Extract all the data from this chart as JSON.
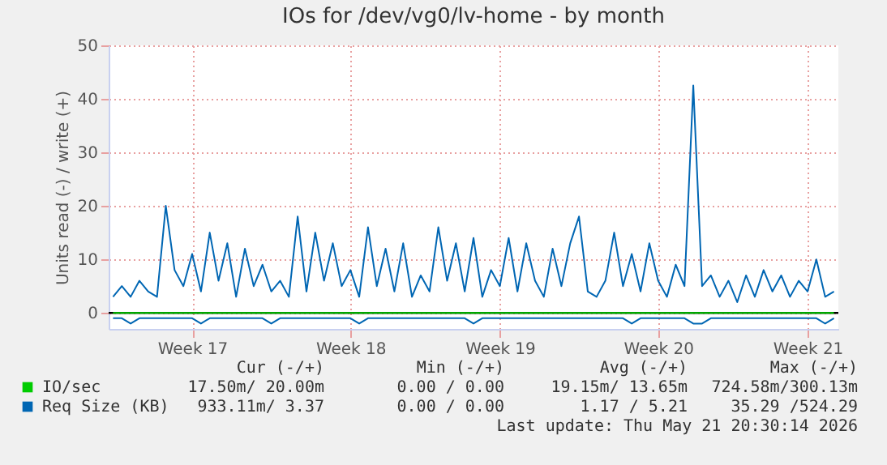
{
  "chart_data": {
    "type": "line",
    "title": "IOs for /dev/vg0/lv-home - by month",
    "ylabel": "Units read (-) / write (+)",
    "categories": [
      null,
      null,
      null,
      null,
      null,
      null,
      null,
      null,
      null,
      "Week 17",
      null,
      null,
      null,
      null,
      null,
      null,
      null,
      null,
      null,
      null,
      null,
      null,
      null,
      null,
      null,
      null,
      null,
      "Week 18",
      null,
      null,
      null,
      null,
      null,
      null,
      null,
      null,
      null,
      null,
      null,
      null,
      null,
      null,
      null,
      null,
      "Week 19",
      null,
      null,
      null,
      null,
      null,
      null,
      null,
      null,
      null,
      null,
      null,
      null,
      null,
      null,
      null,
      null,
      null,
      "Week 20",
      null,
      null,
      null,
      null,
      null,
      null,
      null,
      null,
      null,
      null,
      null,
      null,
      null,
      null,
      null,
      null,
      "Week 21",
      null,
      null,
      null
    ],
    "ylim": [
      -3,
      50
    ],
    "yticks": [
      0,
      10,
      20,
      30,
      40,
      50
    ],
    "grid": true,
    "legend": "bottom left",
    "line_style": "solid",
    "marker": "none",
    "ref_lines": [
      {
        "axis": "y",
        "value": 0,
        "label": null,
        "color": "#000000"
      }
    ],
    "series": [
      {
        "name": "IO/sec",
        "color": "#00cc00",
        "values": [
          0,
          0,
          0,
          0,
          0,
          0,
          0,
          0,
          0,
          0,
          0,
          0,
          0,
          0,
          0,
          0,
          0,
          0,
          0,
          0,
          0,
          0,
          0,
          0,
          0,
          0,
          0,
          0,
          0,
          0,
          0,
          0,
          0,
          0,
          0,
          0,
          0,
          0,
          0,
          0,
          0,
          0,
          0,
          0,
          0,
          0,
          0,
          0,
          0,
          0,
          0,
          0,
          0,
          0,
          0,
          0,
          0,
          0,
          0,
          0,
          0,
          0,
          0,
          0,
          0,
          0,
          0,
          0,
          0,
          0,
          0,
          0,
          0,
          0,
          0,
          0,
          0,
          0,
          0,
          0,
          0,
          0,
          0
        ]
      },
      {
        "name": "Req Size (KB)",
        "color": "#0066b3",
        "values": [
          3,
          5,
          3,
          6,
          4,
          3,
          20,
          8,
          5,
          11,
          4,
          15,
          6,
          13,
          3,
          12,
          5,
          9,
          4,
          6,
          3,
          18,
          4,
          15,
          6,
          13,
          5,
          8,
          3,
          16,
          5,
          12,
          4,
          13,
          3,
          7,
          4,
          16,
          6,
          13,
          4,
          14,
          3,
          8,
          5,
          14,
          4,
          13,
          6,
          3,
          12,
          5,
          13,
          18,
          4,
          3,
          6,
          15,
          5,
          11,
          4,
          13,
          6,
          3,
          9,
          5,
          42.5,
          5,
          7,
          3,
          6,
          2,
          7,
          3,
          8,
          4,
          7,
          3,
          6,
          4,
          10,
          3,
          4
        ]
      },
      {
        "color": "#0066b3",
        "values": [
          -1,
          -1,
          -2,
          -1,
          -1,
          -1,
          -1,
          -1,
          -1,
          -1,
          -2,
          -1,
          -1,
          -1,
          -1,
          -1,
          -1,
          -1,
          -2,
          -1,
          -1,
          -1,
          -1,
          -1,
          -1,
          -1,
          -1,
          -1,
          -2,
          -1,
          -1,
          -1,
          -1,
          -1,
          -1,
          -1,
          -1,
          -1,
          -1,
          -1,
          -1,
          -2,
          -1,
          -1,
          -1,
          -1,
          -1,
          -1,
          -1,
          -1,
          -1,
          -1,
          -1,
          -1,
          -1,
          -1,
          -1,
          -1,
          -1,
          -2,
          -1,
          -1,
          -1,
          -1,
          -1,
          -1,
          -2,
          -2,
          -1,
          -1,
          -1,
          -1,
          -1,
          -1,
          -1,
          -1,
          -1,
          -1,
          -1,
          -1,
          -1,
          -2,
          -1
        ]
      }
    ],
    "annotations": [
      "Cur (-/+)",
      "Min (-/+)",
      "Avg (-/+)",
      "Max (-/+)",
      "17.50m/ 20.00m",
      "0.00 /  0.00",
      "19.15m/ 13.65m",
      "724.58m/300.13m",
      "933.11m/  3.37",
      "0.00 /  0.00",
      "1.17 /  5.21",
      "35.29 /524.29",
      "Last update: Thu May 21 20:30:14 2026"
    ]
  }
}
